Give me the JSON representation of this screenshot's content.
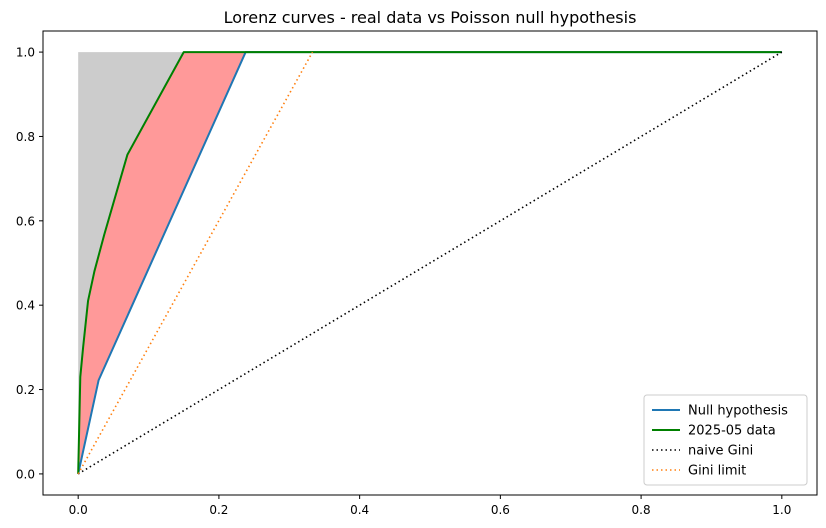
{
  "chart_data": {
    "type": "line",
    "title": "Lorenz curves - real data vs Poisson null hypothesis",
    "xlabel": "",
    "ylabel": "",
    "xlim": [
      -0.05,
      1.05
    ],
    "ylim": [
      -0.05,
      1.05
    ],
    "x_ticks": [
      "0.0",
      "0.2",
      "0.4",
      "0.6",
      "0.8",
      "1.0"
    ],
    "y_ticks": [
      "0.0",
      "0.2",
      "0.4",
      "0.6",
      "0.8",
      "1.0"
    ],
    "grid": false,
    "legend_position": "lower right",
    "fills": [
      {
        "name": "upper bound region",
        "color": "#cccccc",
        "points": [
          [
            0,
            0
          ],
          [
            0,
            1.0
          ],
          [
            0.15,
            1.0
          ],
          [
            0.07,
            0.757
          ],
          [
            0.037,
            0.567
          ],
          [
            0.023,
            0.48
          ],
          [
            0.014,
            0.41
          ],
          [
            0.007,
            0.3
          ],
          [
            0.003,
            0.23
          ],
          [
            0,
            0
          ]
        ]
      },
      {
        "name": "gap between data and null",
        "color": "#ff9999",
        "points": [
          [
            0,
            0
          ],
          [
            0.003,
            0.23
          ],
          [
            0.007,
            0.3
          ],
          [
            0.014,
            0.41
          ],
          [
            0.023,
            0.48
          ],
          [
            0.037,
            0.567
          ],
          [
            0.07,
            0.757
          ],
          [
            0.15,
            1.0
          ],
          [
            0.238,
            1.0
          ],
          [
            0.029,
            0.222
          ],
          [
            0,
            0
          ]
        ]
      }
    ],
    "series": [
      {
        "name": "Null hypothesis",
        "color": "#1f77b4",
        "style": "solid",
        "x": [
          0,
          0.029,
          0.238,
          1.0
        ],
        "y": [
          0,
          0.222,
          1.0,
          1.0
        ]
      },
      {
        "name": "2025-05 data",
        "color": "#008000",
        "style": "solid",
        "x": [
          0,
          0.003,
          0.007,
          0.014,
          0.023,
          0.037,
          0.07,
          0.15,
          0.238,
          1.0
        ],
        "y": [
          0,
          0.23,
          0.3,
          0.41,
          0.48,
          0.567,
          0.757,
          1.0,
          1.0,
          1.0
        ]
      },
      {
        "name": "naive Gini",
        "color": "#000000",
        "style": "dotted",
        "x": [
          0,
          1.0
        ],
        "y": [
          0,
          1.0
        ]
      },
      {
        "name": "Gini limit",
        "color": "#ff7f0e",
        "style": "dotted",
        "x": [
          0,
          0.333
        ],
        "y": [
          0,
          1.0
        ]
      }
    ]
  }
}
